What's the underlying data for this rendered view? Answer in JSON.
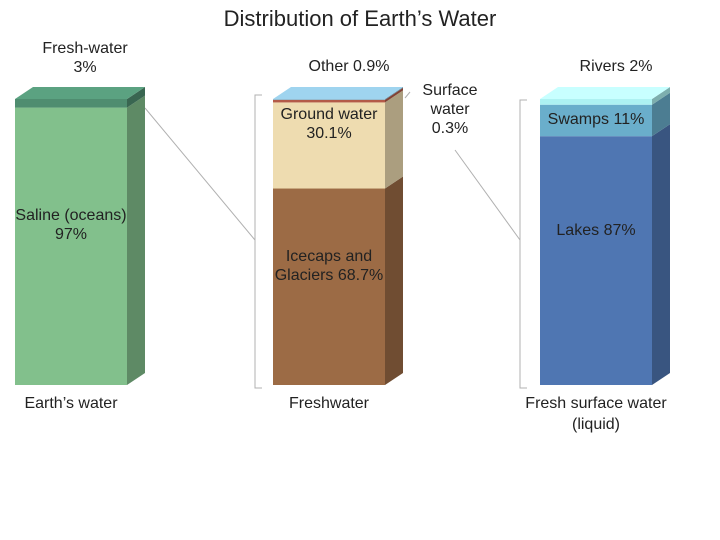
{
  "title": "Distribution of Earth’s Water",
  "chart_data": [
    {
      "type": "stacked_column",
      "label": "Earth’s water",
      "series": [
        {
          "name": "Saline (oceans)",
          "color": "#82c08c",
          "values": [
            97
          ],
          "value_labels": [
            "97%"
          ]
        },
        {
          "name": "Fresh-water",
          "color": "#4f8d70",
          "values": [
            3
          ],
          "value_labels": [
            "3%"
          ]
        }
      ]
    },
    {
      "type": "stacked_column",
      "label": "Freshwater",
      "series": [
        {
          "name": "Icecaps and Glaciers",
          "color": "#9c6b45",
          "values": [
            68.7
          ],
          "value_labels": [
            "68.7%"
          ]
        },
        {
          "name": "Ground water",
          "color": "#eedcb0",
          "values": [
            30.1
          ],
          "value_labels": [
            "30.1%"
          ]
        },
        {
          "name": "Other",
          "color": "#b35a48",
          "values": [
            0.9
          ],
          "value_labels": [
            "0.9%"
          ]
        },
        {
          "name": "Surface water",
          "color": "#8ab8d0",
          "values": [
            0.3
          ],
          "value_labels": [
            "0.3%"
          ]
        }
      ]
    },
    {
      "type": "stacked_column",
      "label": "Fresh surface water (liquid)",
      "series": [
        {
          "name": "Lakes",
          "color": "#4f76b2",
          "values": [
            87
          ],
          "value_labels": [
            "87%"
          ]
        },
        {
          "name": "Swamps",
          "color": "#6aaecb",
          "values": [
            11
          ],
          "value_labels": [
            "11%"
          ]
        },
        {
          "name": "Rivers",
          "color": "#aef2f2",
          "values": [
            2
          ],
          "value_labels": [
            "2%"
          ]
        }
      ]
    }
  ]
}
